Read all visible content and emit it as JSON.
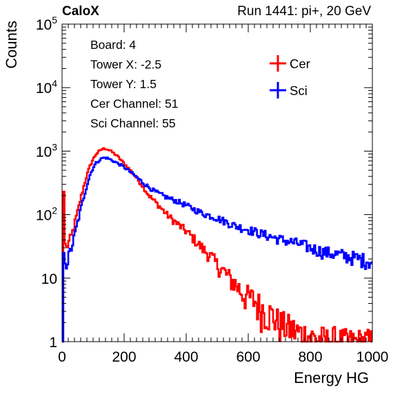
{
  "header": {
    "left_label": "CaloX",
    "right_label": "Run 1441: pi+, 20 GeV"
  },
  "info_box": {
    "lines": [
      "Board: 4",
      "Tower X: -2.5",
      "Tower Y: 1.5",
      "Cer Channel: 51",
      "Sci Channel: 55"
    ]
  },
  "chart_data": {
    "type": "line",
    "xlabel": "Energy HG",
    "ylabel": "Counts",
    "xlim": [
      0,
      1000
    ],
    "ylim": [
      1,
      100000
    ],
    "yscale": "log",
    "x_ticks": [
      0,
      200,
      400,
      600,
      800,
      1000
    ],
    "y_ticks": [
      {
        "value": 1,
        "label": "1"
      },
      {
        "value": 10,
        "label": "10"
      },
      {
        "value": 100,
        "label": "10^2"
      },
      {
        "value": 1000,
        "label": "10^3"
      },
      {
        "value": 10000,
        "label": "10^4"
      },
      {
        "value": 100000,
        "label": "10^5"
      }
    ],
    "grid": false,
    "legend": "top-right",
    "series": [
      {
        "name": "Cer",
        "color": "#ff0000",
        "x": [
          0,
          4,
          6,
          8,
          10,
          14,
          20,
          30,
          40,
          50,
          60,
          70,
          80,
          90,
          100,
          110,
          120,
          130,
          140,
          150,
          160,
          170,
          180,
          190,
          200,
          220,
          240,
          260,
          280,
          300,
          320,
          340,
          360,
          380,
          400,
          420,
          440,
          460,
          480,
          500,
          520,
          540,
          560,
          580,
          600,
          620,
          640,
          660,
          680,
          700,
          720,
          740,
          760,
          780,
          800,
          820,
          840,
          860,
          880,
          900,
          920,
          940,
          960,
          980,
          1000
        ],
        "y": [
          1,
          1,
          230,
          60,
          35,
          30,
          35,
          45,
          70,
          110,
          180,
          280,
          420,
          580,
          750,
          900,
          1000,
          1080,
          1100,
          1050,
          980,
          900,
          820,
          720,
          640,
          500,
          380,
          280,
          200,
          160,
          125,
          98,
          80,
          66,
          55,
          44,
          34,
          27,
          22,
          16,
          13,
          10,
          8,
          6,
          5,
          4.5,
          3.5,
          3,
          2.5,
          2,
          1.8,
          1.6,
          1.4,
          1.3,
          1.2,
          1.1,
          1.1,
          1,
          1.1,
          1,
          1,
          1,
          1,
          1,
          1
        ]
      },
      {
        "name": "Sci",
        "color": "#0000ff",
        "x": [
          0,
          2,
          4,
          6,
          8,
          10,
          14,
          20,
          30,
          40,
          50,
          60,
          70,
          80,
          90,
          100,
          110,
          120,
          130,
          140,
          150,
          160,
          170,
          180,
          190,
          200,
          220,
          240,
          260,
          280,
          300,
          320,
          340,
          360,
          380,
          400,
          420,
          440,
          460,
          480,
          500,
          520,
          540,
          560,
          580,
          600,
          620,
          640,
          660,
          680,
          700,
          720,
          740,
          760,
          780,
          800,
          820,
          840,
          860,
          880,
          900,
          920,
          940,
          960,
          980,
          1000
        ],
        "y": [
          1,
          1,
          70,
          25,
          18,
          17,
          18,
          20,
          30,
          45,
          75,
          120,
          190,
          290,
          420,
          550,
          650,
          720,
          780,
          790,
          760,
          720,
          680,
          640,
          600,
          560,
          470,
          390,
          320,
          270,
          230,
          205,
          185,
          170,
          155,
          140,
          125,
          112,
          102,
          95,
          88,
          80,
          72,
          66,
          62,
          58,
          54,
          50,
          47,
          44,
          41,
          39,
          37,
          35,
          33,
          30,
          28,
          26,
          25,
          24,
          23,
          22,
          21,
          20,
          19,
          18
        ]
      }
    ]
  }
}
